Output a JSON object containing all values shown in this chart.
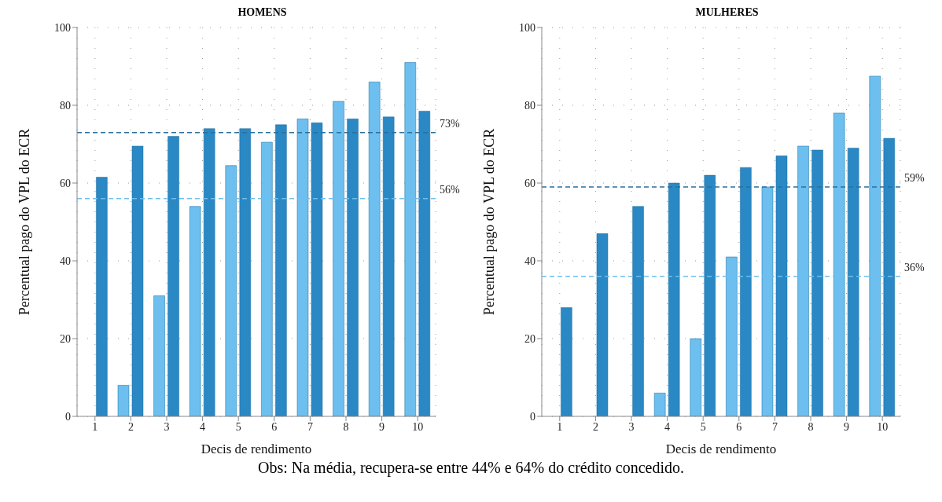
{
  "chart_data": [
    {
      "type": "bar",
      "title": "HOMENS",
      "xlabel": "Decis de rendimento",
      "ylabel": "Percentual pago do VPL do ECR",
      "categories": [
        "1",
        "2",
        "3",
        "4",
        "5",
        "6",
        "7",
        "8",
        "9",
        "10"
      ],
      "series": [
        {
          "color": "#6cbfee",
          "values": [
            0,
            8,
            31,
            54,
            64.5,
            70.5,
            76.5,
            81,
            86,
            91
          ]
        },
        {
          "color": "#2a88c4",
          "values": [
            61.5,
            69.5,
            72,
            74,
            74,
            75,
            75.5,
            76.5,
            77,
            78.5
          ]
        }
      ],
      "ylim": [
        0,
        100
      ],
      "yticks": [
        0,
        20,
        40,
        60,
        80,
        100
      ],
      "grid": true,
      "ref_lines": [
        {
          "axis": "y",
          "value": 73,
          "label": "73%",
          "color": "#2a6f9e",
          "line_style": "dashed"
        },
        {
          "axis": "y",
          "value": 56,
          "label": "56%",
          "color": "#6cbfee",
          "line_style": "dashed"
        }
      ]
    },
    {
      "type": "bar",
      "title": "MULHERES",
      "xlabel": "Decis de rendimento",
      "ylabel": "Percentual pago do VPL do ECR",
      "categories": [
        "1",
        "2",
        "3",
        "4",
        "5",
        "6",
        "7",
        "8",
        "9",
        "10"
      ],
      "series": [
        {
          "color": "#6cbfee",
          "values": [
            0,
            0,
            0,
            6,
            20,
            41,
            59,
            69.5,
            78,
            87.5
          ]
        },
        {
          "color": "#2a88c4",
          "values": [
            28,
            47,
            54,
            60,
            62,
            64,
            67,
            68.5,
            69,
            71.5
          ]
        }
      ],
      "ylim": [
        0,
        100
      ],
      "yticks": [
        0,
        20,
        40,
        60,
        80,
        100
      ],
      "grid": true,
      "ref_lines": [
        {
          "axis": "y",
          "value": 59,
          "label": "59%",
          "color": "#2a6f9e",
          "line_style": "dashed"
        },
        {
          "axis": "y",
          "value": 36,
          "label": "36%",
          "color": "#6cbfee",
          "line_style": "dashed"
        }
      ],
      "annotations": [
        "Obs: Na média, recupera-se entre 44% e 64% do crédito concedido."
      ]
    }
  ]
}
